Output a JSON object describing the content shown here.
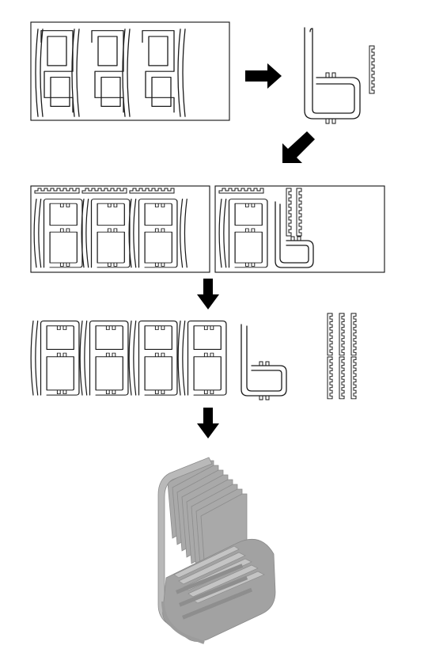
{
  "figure": {
    "steps": [
      "sheet-with-three-rib-profiles",
      "single-rib-profile-with-comb-strip",
      "two-nested-cutting-sheets",
      "all-cut-ribs-and-comb-strips",
      "assembled-slatted-lounge-chair"
    ],
    "colors": {
      "line": "#1a1a1a",
      "arrow": "#000000",
      "chair_face": "#a9a9a9",
      "chair_top": "#c4c4c4",
      "chair_side": "#8e8e8e"
    },
    "arrow_icons": [
      "arrow-right-icon",
      "arrow-down-left-icon",
      "arrow-down-icon",
      "arrow-down-icon"
    ]
  }
}
